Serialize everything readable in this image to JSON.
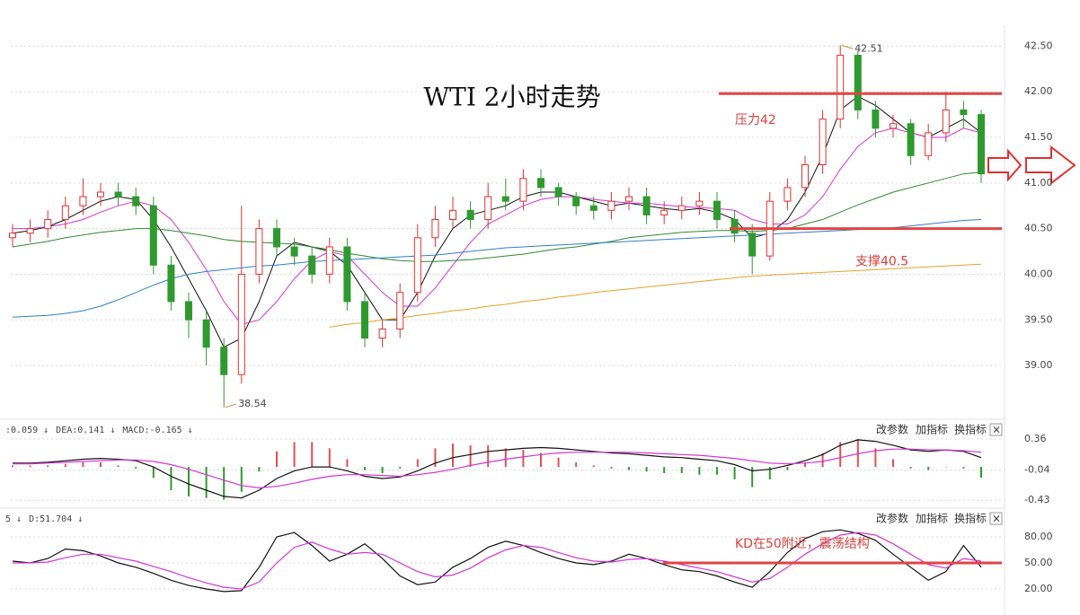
{
  "chart_data": [
    {
      "type": "candlestick",
      "title": "WTI 2小时走势",
      "up_color": "#e03030",
      "down_color": "#2f9a2f",
      "open": [
        40.4,
        40.45,
        40.5,
        40.6,
        40.75,
        40.85,
        40.9,
        40.85,
        40.75,
        40.1,
        39.7,
        39.5,
        39.2,
        38.9,
        40.0,
        40.5,
        40.3,
        40.2,
        40.0,
        40.3,
        39.7,
        39.3,
        39.4,
        39.8,
        40.4,
        40.6,
        40.7,
        40.6,
        40.85,
        40.8,
        41.05,
        40.95,
        40.85,
        40.75,
        40.7,
        40.8,
        40.85,
        40.65,
        40.7,
        40.75,
        40.8,
        40.6,
        40.45,
        40.2,
        40.8,
        40.95,
        41.2,
        41.7,
        42.4,
        41.8,
        41.6,
        41.65,
        41.3,
        41.55,
        41.8,
        41.75
      ],
      "high": [
        40.55,
        40.6,
        40.7,
        40.85,
        41.05,
        41.0,
        41.0,
        40.95,
        40.85,
        40.2,
        39.8,
        39.6,
        39.3,
        40.75,
        40.6,
        40.6,
        40.4,
        40.3,
        40.4,
        40.4,
        39.8,
        39.5,
        39.9,
        40.55,
        40.75,
        40.85,
        40.8,
        41.0,
        41.05,
        41.15,
        41.15,
        41.0,
        40.9,
        40.85,
        40.9,
        40.95,
        40.95,
        40.8,
        40.85,
        40.9,
        40.9,
        40.7,
        40.55,
        40.9,
        41.05,
        41.3,
        41.8,
        42.51,
        42.45,
        41.9,
        41.75,
        41.7,
        41.65,
        42.0,
        41.9,
        41.8
      ],
      "low": [
        40.3,
        40.35,
        40.4,
        40.5,
        40.65,
        40.75,
        40.75,
        40.65,
        40.0,
        39.6,
        39.3,
        39.0,
        38.54,
        38.8,
        39.9,
        40.2,
        40.1,
        39.9,
        39.9,
        39.6,
        39.2,
        39.2,
        39.3,
        39.7,
        40.3,
        40.5,
        40.5,
        40.5,
        40.7,
        40.7,
        40.85,
        40.75,
        40.65,
        40.6,
        40.6,
        40.7,
        40.55,
        40.55,
        40.6,
        40.65,
        40.5,
        40.35,
        40.0,
        40.15,
        40.7,
        40.85,
        41.1,
        41.6,
        41.7,
        41.5,
        41.5,
        41.2,
        41.25,
        41.45,
        41.6,
        41.0
      ],
      "close": [
        40.45,
        40.5,
        40.6,
        40.75,
        40.85,
        40.9,
        40.85,
        40.75,
        40.1,
        39.7,
        39.5,
        39.2,
        38.9,
        40.0,
        40.5,
        40.3,
        40.2,
        40.0,
        40.3,
        39.7,
        39.3,
        39.4,
        39.8,
        40.4,
        40.6,
        40.7,
        40.6,
        40.85,
        40.8,
        41.05,
        40.95,
        40.85,
        40.75,
        40.7,
        40.8,
        40.85,
        40.65,
        40.7,
        40.75,
        40.8,
        40.6,
        40.45,
        40.2,
        40.8,
        40.95,
        41.2,
        41.7,
        42.4,
        41.8,
        41.6,
        41.65,
        41.3,
        41.55,
        41.8,
        41.75,
        41.1
      ],
      "ma": [
        {
          "color": "#111111",
          "values": [
            40.45,
            40.48,
            40.52,
            40.6,
            40.7,
            40.8,
            40.85,
            40.82,
            40.6,
            40.3,
            39.95,
            39.6,
            39.2,
            39.3,
            39.7,
            40.2,
            40.35,
            40.3,
            40.25,
            40.1,
            39.8,
            39.5,
            39.5,
            39.8,
            40.2,
            40.5,
            40.65,
            40.7,
            40.75,
            40.85,
            40.9,
            40.9,
            40.85,
            40.8,
            40.75,
            40.78,
            40.75,
            40.72,
            40.7,
            40.72,
            40.68,
            40.6,
            40.4,
            40.45,
            40.6,
            40.9,
            41.3,
            41.8,
            41.95,
            41.85,
            41.7,
            41.55,
            41.5,
            41.6,
            41.7,
            41.55
          ]
        },
        {
          "color": "#d633d6",
          "values": [
            40.5,
            40.5,
            40.52,
            40.55,
            40.6,
            40.68,
            40.75,
            40.8,
            40.75,
            40.6,
            40.35,
            40.05,
            39.7,
            39.45,
            39.5,
            39.7,
            39.95,
            40.15,
            40.25,
            40.2,
            40.0,
            39.8,
            39.65,
            39.65,
            39.85,
            40.1,
            40.35,
            40.55,
            40.65,
            40.75,
            40.82,
            40.85,
            40.85,
            40.82,
            40.8,
            40.78,
            40.78,
            40.76,
            40.74,
            40.73,
            40.72,
            40.7,
            40.6,
            40.55,
            40.55,
            40.65,
            40.85,
            41.15,
            41.4,
            41.55,
            41.6,
            41.55,
            41.5,
            41.5,
            41.6,
            41.55
          ]
        },
        {
          "color": "#2e8b2e",
          "values": [
            40.3,
            40.33,
            40.36,
            40.4,
            40.43,
            40.46,
            40.48,
            40.5,
            40.5,
            40.48,
            40.45,
            40.42,
            40.38,
            40.36,
            40.35,
            40.34,
            40.33,
            40.3,
            40.27,
            40.23,
            40.2,
            40.17,
            40.15,
            40.14,
            40.14,
            40.15,
            40.16,
            40.18,
            40.2,
            40.22,
            40.25,
            40.28,
            40.3,
            40.33,
            40.36,
            40.4,
            40.42,
            40.44,
            40.46,
            40.47,
            40.48,
            40.48,
            40.47,
            40.48,
            40.5,
            40.55,
            40.6,
            40.68,
            40.76,
            40.83,
            40.9,
            40.95,
            41.0,
            41.05,
            41.1,
            41.12
          ]
        },
        {
          "color": "#2f7fc8",
          "values": [
            39.53,
            39.54,
            39.55,
            39.57,
            39.6,
            39.65,
            39.72,
            39.8,
            39.88,
            39.95,
            40.0,
            40.03,
            40.05,
            40.07,
            40.09,
            40.1,
            40.12,
            40.14,
            40.15,
            40.16,
            40.17,
            40.18,
            40.19,
            40.2,
            40.21,
            40.23,
            40.25,
            40.27,
            40.29,
            40.3,
            40.31,
            40.32,
            40.33,
            40.34,
            40.35,
            40.36,
            40.37,
            40.38,
            40.39,
            40.4,
            40.41,
            40.42,
            40.43,
            40.44,
            40.45,
            40.46,
            40.47,
            40.48,
            40.49,
            40.5,
            40.51,
            40.53,
            40.55,
            40.57,
            40.59,
            40.6
          ]
        },
        {
          "color": "#e8a12a",
          "values": [
            null,
            null,
            null,
            null,
            null,
            null,
            null,
            null,
            null,
            null,
            null,
            null,
            null,
            null,
            null,
            null,
            null,
            null,
            39.42,
            39.45,
            39.47,
            39.5,
            39.52,
            39.55,
            39.57,
            39.6,
            39.62,
            39.65,
            39.67,
            39.7,
            39.72,
            39.75,
            39.77,
            39.8,
            39.82,
            39.84,
            39.86,
            39.88,
            39.9,
            39.92,
            39.94,
            39.96,
            39.98,
            39.99,
            40.0,
            40.01,
            40.02,
            40.03,
            40.04,
            40.05,
            40.06,
            40.07,
            40.08,
            40.09,
            40.1,
            40.11
          ]
        }
      ],
      "hlines": [
        {
          "value": 41.98,
          "label": "压力42",
          "color": "#e04545"
        },
        {
          "value": 40.5,
          "label": "支撑40.5",
          "color": "#e04545"
        }
      ],
      "ylim": [
        38.43,
        42.73
      ],
      "yticks": [
        {
          "value": 39,
          "label": "39.00"
        },
        {
          "value": 39.5,
          "label": "39.50"
        },
        {
          "value": 40,
          "label": "40.00"
        },
        {
          "value": 40.5,
          "label": "40.50"
        },
        {
          "value": 41,
          "label": "41.00"
        },
        {
          "value": 41.5,
          "label": "41.50"
        },
        {
          "value": 42,
          "label": "42.00"
        },
        {
          "value": 42.5,
          "label": "42.50"
        }
      ],
      "grid": true
    },
    {
      "type": "macd",
      "header": [
        {
          "text": ":0.059 ↓",
          "color": "#111111"
        },
        {
          "text": "DEA:0.141 ↓",
          "color": "#c030c0"
        },
        {
          "text": "MACD:-0.165 ↓",
          "color": "#777777"
        }
      ],
      "buttons": [
        "改参数",
        "加指标",
        "换指标",
        "×"
      ],
      "series": [
        {
          "name": "DIF",
          "color": "#111111",
          "values": [
            0.05,
            0.05,
            0.06,
            0.08,
            0.1,
            0.11,
            0.1,
            0.08,
            0.0,
            -0.12,
            -0.22,
            -0.3,
            -0.38,
            -0.4,
            -0.3,
            -0.15,
            -0.05,
            0.0,
            0.0,
            -0.05,
            -0.12,
            -0.15,
            -0.13,
            -0.05,
            0.05,
            0.12,
            0.16,
            0.2,
            0.22,
            0.24,
            0.25,
            0.24,
            0.22,
            0.2,
            0.18,
            0.17,
            0.15,
            0.13,
            0.12,
            0.1,
            0.08,
            0.03,
            -0.05,
            -0.03,
            0.02,
            0.08,
            0.16,
            0.28,
            0.35,
            0.33,
            0.28,
            0.22,
            0.2,
            0.22,
            0.2,
            0.12
          ]
        },
        {
          "name": "DEA",
          "color": "#d633d6",
          "values": [
            0.04,
            0.04,
            0.05,
            0.06,
            0.07,
            0.08,
            0.09,
            0.09,
            0.07,
            0.03,
            -0.03,
            -0.1,
            -0.17,
            -0.24,
            -0.27,
            -0.25,
            -0.21,
            -0.16,
            -0.12,
            -0.1,
            -0.1,
            -0.11,
            -0.12,
            -0.1,
            -0.07,
            -0.03,
            0.02,
            0.06,
            0.1,
            0.13,
            0.16,
            0.18,
            0.19,
            0.19,
            0.19,
            0.19,
            0.18,
            0.17,
            0.16,
            0.15,
            0.13,
            0.11,
            0.08,
            0.05,
            0.04,
            0.05,
            0.07,
            0.12,
            0.17,
            0.21,
            0.23,
            0.23,
            0.22,
            0.22,
            0.21,
            0.19
          ]
        }
      ],
      "histogram": {
        "up_color": "#e05050",
        "down_color": "#2f9a2f",
        "values": [
          0.02,
          0.02,
          0.02,
          0.04,
          0.06,
          0.06,
          0.02,
          -0.02,
          -0.14,
          -0.3,
          -0.38,
          -0.4,
          -0.42,
          -0.32,
          -0.06,
          0.2,
          0.32,
          0.32,
          0.24,
          0.1,
          -0.04,
          -0.08,
          -0.02,
          0.1,
          0.24,
          0.3,
          0.28,
          0.28,
          0.24,
          0.22,
          0.18,
          0.12,
          0.06,
          0.02,
          -0.02,
          -0.04,
          -0.06,
          -0.08,
          -0.08,
          -0.1,
          -0.1,
          -0.16,
          -0.26,
          -0.16,
          -0.04,
          0.06,
          0.18,
          0.32,
          0.36,
          0.24,
          0.1,
          -0.02,
          -0.04,
          0,
          -0.02,
          -0.14
        ]
      },
      "ylim": [
        -0.52,
        0.58
      ],
      "yticks": [
        -0.43,
        -0.04,
        0.36
      ],
      "grid": true
    },
    {
      "type": "kd",
      "header": [
        {
          "text": "5 ↓",
          "color": "#111111"
        },
        {
          "text": "D:51.704 ↓",
          "color": "#c030c0"
        }
      ],
      "buttons": [
        "改参数",
        "加指标",
        "换指标",
        "×"
      ],
      "series": [
        {
          "name": "K",
          "color": "#111111",
          "values": [
            52,
            50,
            55,
            66,
            64,
            58,
            50,
            45,
            38,
            30,
            24,
            20,
            17,
            18,
            45,
            80,
            85,
            70,
            52,
            60,
            72,
            55,
            35,
            25,
            28,
            45,
            55,
            68,
            75,
            70,
            62,
            55,
            50,
            48,
            52,
            60,
            55,
            48,
            42,
            40,
            35,
            28,
            22,
            40,
            62,
            78,
            86,
            88,
            84,
            76,
            60,
            45,
            30,
            40,
            70,
            45
          ]
        },
        {
          "name": "D",
          "color": "#d633d6",
          "values": [
            50,
            50,
            51,
            56,
            60,
            60,
            56,
            52,
            46,
            40,
            33,
            27,
            22,
            20,
            28,
            50,
            68,
            74,
            66,
            60,
            62,
            60,
            50,
            40,
            34,
            36,
            44,
            56,
            65,
            70,
            68,
            62,
            56,
            52,
            51,
            54,
            55,
            52,
            48,
            44,
            40,
            34,
            28,
            32,
            45,
            60,
            72,
            82,
            85,
            82,
            72,
            60,
            48,
            44,
            55,
            52
          ]
        }
      ],
      "hlines": [
        {
          "value": 50,
          "label": "KD在50附近，震荡结构",
          "color": "#e04545"
        }
      ],
      "ylim": [
        -10,
        111
      ],
      "yticks": [
        {
          "value": 20,
          "label": "20.00"
        },
        {
          "value": 50,
          "label": "50.00"
        },
        {
          "value": 80,
          "label": "80.00"
        }
      ],
      "grid": true
    }
  ]
}
